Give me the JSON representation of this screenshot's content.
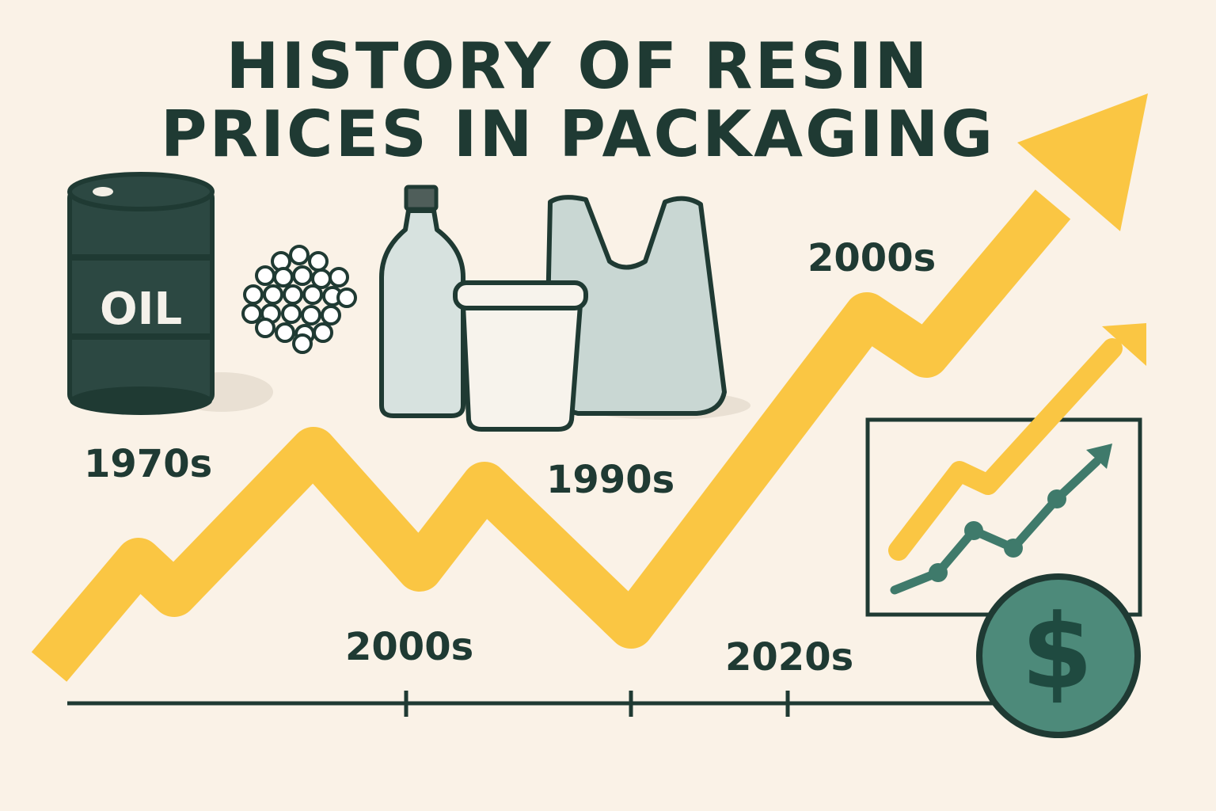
{
  "title": {
    "line1": "HISTORY OF RESIN",
    "line2": "PRICES IN PACKAGING"
  },
  "barrel_label": "OIL",
  "labels": {
    "l1970s": "1970s",
    "l1990s": "1990s",
    "l2000s_top": "2000s",
    "l2000s_bottom": "2000s",
    "l2020s": "2020s"
  },
  "coin_symbol": "$",
  "icons": [
    "oil-barrel-icon",
    "resin-pellets-icon",
    "plastic-bottle-icon",
    "plastic-tub-icon",
    "plastic-bag-icon",
    "rising-chart-icon",
    "dollar-coin-icon",
    "trend-arrow-icon"
  ],
  "colors": {
    "background": "#faf2e7",
    "dark": "#1f3a33",
    "accent_yellow": "#fac643",
    "teal": "#4d8a7a"
  }
}
